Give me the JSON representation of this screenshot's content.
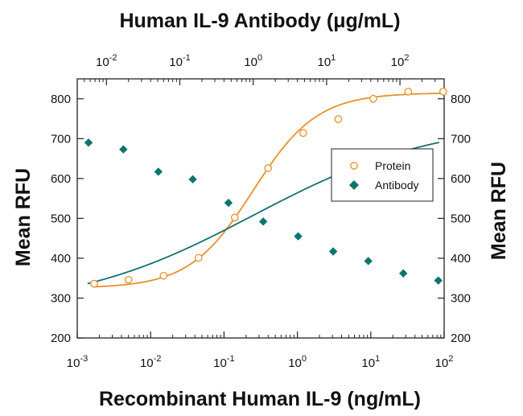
{
  "chart_data": {
    "type": "scatter",
    "title": "Human IL-9 Antibody (μg/mL)",
    "xlabel": "Recombinant Human IL-9 (ng/mL)",
    "ylabel": "Mean RFU",
    "ylabel_right": "Mean RFU",
    "x_scale": "log",
    "xlim": [
      0.001,
      100
    ],
    "x_ticks": [
      {
        "base": "10",
        "exp": "-3",
        "value": 0.001
      },
      {
        "base": "10",
        "exp": "-2",
        "value": 0.01
      },
      {
        "base": "10",
        "exp": "-1",
        "value": 0.1
      },
      {
        "base": "10",
        "exp": "0",
        "value": 1
      },
      {
        "base": "10",
        "exp": "1",
        "value": 10
      },
      {
        "base": "10",
        "exp": "2",
        "value": 100
      }
    ],
    "x2_scale": "log",
    "x2lim": [
      0.004,
      400
    ],
    "x2_ticks": [
      {
        "base": "10",
        "exp": "-2",
        "value": 0.01
      },
      {
        "base": "10",
        "exp": "-1",
        "value": 0.1
      },
      {
        "base": "10",
        "exp": "0",
        "value": 1
      },
      {
        "base": "10",
        "exp": "1",
        "value": 10
      },
      {
        "base": "10",
        "exp": "2",
        "value": 100
      }
    ],
    "ylim": [
      200,
      850
    ],
    "y_ticks": [
      "200",
      "300",
      "400",
      "500",
      "600",
      "700",
      "800"
    ],
    "grid": false,
    "legend_position": "right",
    "series": [
      {
        "name": "Protein",
        "axis": "bottom",
        "marker": "open-circle",
        "color": "#E8902A",
        "x": [
          0.0017,
          0.005,
          0.015,
          0.045,
          0.14,
          0.4,
          1.2,
          3.6,
          10.8,
          32.4,
          97.2
        ],
        "y": [
          336,
          346,
          356,
          401,
          502,
          626,
          714,
          749,
          800,
          818,
          818
        ],
        "fit_curve": {
          "bottom": 325,
          "top": 815,
          "ec50": 0.25,
          "hill": 1.0
        }
      },
      {
        "name": "Antibody",
        "axis": "top",
        "marker": "filled-diamond",
        "color": "#0F7370",
        "x": [
          0.0057,
          0.017,
          0.051,
          0.15,
          0.46,
          1.37,
          4.1,
          12.3,
          37,
          111,
          333
        ],
        "y": [
          690,
          673,
          617,
          598,
          539,
          492,
          455,
          417,
          393,
          362,
          344
        ],
        "fit_curve": {
          "bottom": 270,
          "top": 745,
          "ec50": 1.0,
          "hill": 0.35
        }
      }
    ]
  }
}
